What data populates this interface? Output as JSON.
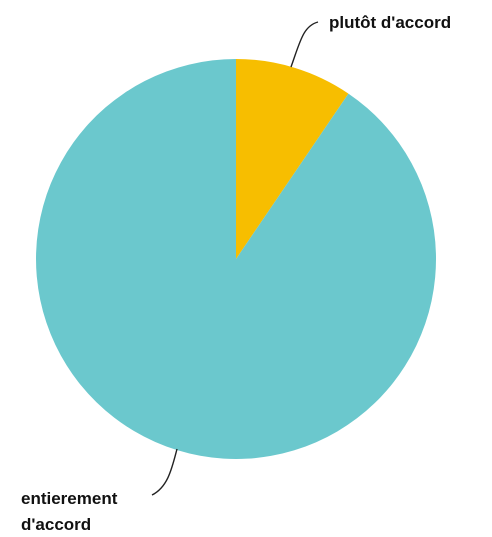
{
  "chart_data": {
    "type": "pie",
    "slices": [
      {
        "label": "plutôt d'accord",
        "label_lines": [
          "plutôt d'accord"
        ],
        "value": 9.5,
        "color": "#F7BE00"
      },
      {
        "label": "entierement d'accord",
        "label_lines": [
          "entierement",
          "d'accord"
        ],
        "value": 90.5,
        "color": "#6BC8CD"
      }
    ],
    "start_angle": "12 o'clock",
    "direction": "clockwise",
    "legend": "none"
  }
}
